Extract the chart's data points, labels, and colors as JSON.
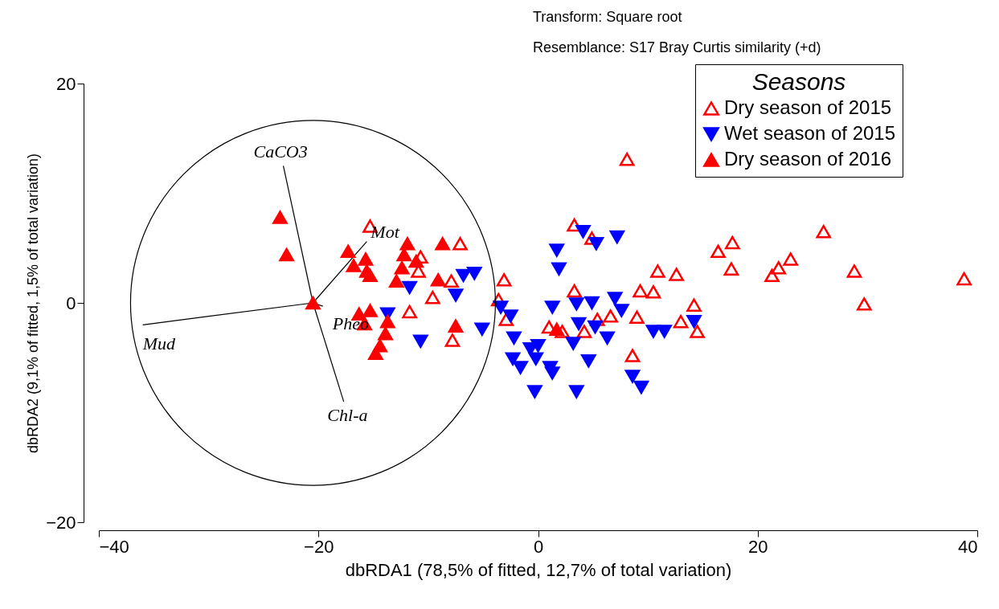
{
  "chart_data": {
    "type": "scatter",
    "xlabel": "dbRDA1 (78,5% of fitted, 12,7% of total variation)",
    "ylabel": "dbRDA2 (9,1% of fitted, 1,5% of total variation)",
    "legend_title": "Seasons",
    "legend": "top right",
    "grid": false,
    "xlim": [
      -40,
      40
    ],
    "ylim": [
      -20,
      20
    ],
    "xticks": [
      -40,
      -20,
      0,
      20,
      40
    ],
    "yticks": [
      -20,
      0,
      20
    ],
    "series": [
      {
        "name": "Dry season of 2015",
        "color": "#ff0000",
        "marker": "triangle-open",
        "x": [
          -15.3,
          -7.1,
          -10.7,
          -10.9,
          -7.9,
          -9.6,
          -11.7,
          -7.8,
          -3.1,
          -3.6,
          -2.9,
          3.3,
          4.9,
          3.3,
          1.0,
          2.2,
          4.2,
          6.6,
          5.4,
          9.0,
          10.9,
          12.6,
          9.3,
          10.5,
          14.2,
          13.0,
          14.5,
          8.6,
          8.1,
          17.7,
          16.4,
          17.6,
          26.0,
          23.0,
          21.9,
          21.3,
          28.8,
          29.7,
          38.8
        ],
        "values": [
          7.0,
          5.4,
          4.2,
          2.9,
          2.0,
          0.5,
          -0.8,
          -3.4,
          2.1,
          0.3,
          -1.5,
          7.1,
          5.9,
          1.1,
          -2.2,
          -2.6,
          -2.6,
          -1.2,
          -1.5,
          -1.3,
          2.9,
          2.6,
          1.1,
          1.0,
          -0.2,
          -1.7,
          -2.6,
          -4.8,
          13.1,
          5.5,
          4.7,
          3.1,
          6.5,
          4.0,
          3.2,
          2.5,
          2.9,
          -0.1,
          2.2
        ]
      },
      {
        "name": "Wet season of 2015",
        "color": "#0000ff",
        "marker": "triangle-down",
        "x": [
          -5.8,
          -6.8,
          -11.7,
          -7.5,
          -13.7,
          -10.7,
          -5.1,
          -3.4,
          -2.5,
          -2.2,
          4.1,
          5.3,
          7.2,
          1.7,
          1.9,
          1.3,
          3.5,
          4.9,
          7.0,
          7.6,
          3.7,
          5.2,
          3.2,
          6.3,
          0.0,
          -0.7,
          -2.3,
          -1.6,
          1.1,
          1.3,
          -0.3,
          3.5,
          4.6,
          10.5,
          11.5,
          14.2,
          8.6,
          9.4,
          -0.2
        ],
        "values": [
          2.7,
          2.5,
          1.4,
          0.7,
          -1.0,
          -3.5,
          -2.4,
          -0.4,
          -1.2,
          -3.2,
          6.5,
          5.4,
          6.0,
          4.8,
          3.1,
          -0.4,
          -0.1,
          0.0,
          0.4,
          -0.7,
          -1.9,
          -2.2,
          -3.7,
          -3.2,
          -3.9,
          -4.2,
          -5.1,
          -5.9,
          -5.9,
          -6.4,
          -8.1,
          -8.1,
          -5.3,
          -2.6,
          -2.6,
          -1.7,
          -6.7,
          -7.7,
          -5.1
        ]
      },
      {
        "name": "Dry season of 2016",
        "color": "#ff0000",
        "marker": "triangle",
        "x": [
          -23.5,
          -22.9,
          -17.3,
          -15.7,
          -16.8,
          -15.6,
          -15.3,
          -11.9,
          -12.2,
          -11.1,
          -12.4,
          -12.9,
          -8.7,
          -9.1,
          -20.5,
          -16.3,
          -15.3,
          -15.8,
          -13.7,
          -13.9,
          -14.4,
          -14.8,
          -7.5,
          1.7
        ],
        "values": [
          7.8,
          4.4,
          4.7,
          4.0,
          3.4,
          2.9,
          2.5,
          5.4,
          4.4,
          3.8,
          3.2,
          2.0,
          5.4,
          2.1,
          0.0,
          -1.0,
          -0.7,
          -1.9,
          -1.7,
          -2.8,
          -3.9,
          -4.6,
          -2.1,
          -2.4
        ]
      },
      {
        "type": "line",
        "name": "CaCO3",
        "color": "#000000",
        "x": [
          -20.5,
          -23.2
        ],
        "values": [
          0,
          12.5
        ]
      },
      {
        "type": "line",
        "name": "Mot",
        "color": "#000000",
        "x": [
          -20.5,
          -15.6
        ],
        "values": [
          0,
          5.6
        ]
      },
      {
        "type": "line",
        "name": "Mud",
        "color": "#000000",
        "x": [
          -20.5,
          -36.0
        ],
        "values": [
          0,
          -2.0
        ]
      },
      {
        "type": "line",
        "name": "Chl-a",
        "color": "#000000",
        "x": [
          -20.5,
          -17.7
        ],
        "values": [
          0,
          -9.0
        ]
      },
      {
        "type": "line",
        "name": "Pheo",
        "color": "#000000",
        "x": [
          -20.5,
          -19.6
        ],
        "values": [
          0,
          -0.3
        ]
      }
    ],
    "annotations": [
      "Transform: Square root",
      "Resemblance: S17 Bray Curtis similarity (+d)"
    ]
  }
}
